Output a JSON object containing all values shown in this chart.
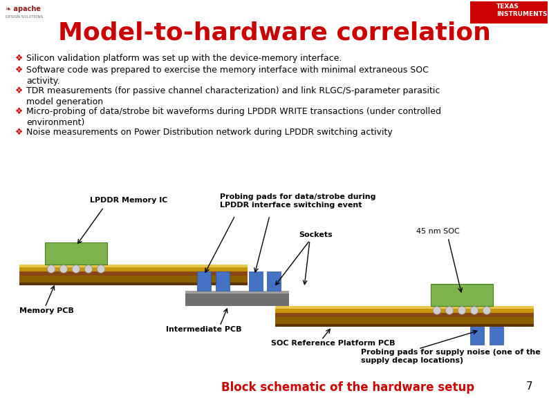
{
  "title": "Model-to-hardware correlation",
  "title_color": "#CC0000",
  "title_fontsize": 26,
  "background_color": "#FFFFFF",
  "bullet_points": [
    {
      "text": "Silicon validation platform was set up with the device-memory interface.",
      "lines": 1
    },
    {
      "text": "Software code was prepared to exercise the memory interface with minimal extraneous SOC\nactivity.",
      "lines": 2
    },
    {
      "text": "TDR measurements (for passive channel characterization) and link RLGC/S-parameter parasitic\nmodel generation",
      "lines": 2
    },
    {
      "text": "Micro-probing of data/strobe bit waveforms during LPDDR WRITE transactions (under controlled\nenvironment)",
      "lines": 2
    },
    {
      "text": "Noise measurements on Power Distribution network during LPDDR switching activity",
      "lines": 1
    }
  ],
  "bullet_color": "#000000",
  "bullet_fontsize": 9.0,
  "footer_text": "Block schematic of the hardware setup",
  "footer_color": "#CC0000",
  "footer_fontsize": 12,
  "page_number": "7",
  "pcb_colors": {
    "gold_top": "#E8C84A",
    "gold_main": "#C8960A",
    "brown_stripe": "#8B4513",
    "dark_bottom": "#5C3300",
    "gray_inter": "#808080",
    "gray_light": "#A0A0A0",
    "green_ic": "#7CB34A",
    "green_ic_edge": "#4a7c1f",
    "blue_socket": "#4472C4",
    "blue_socket_edge": "#2c5299",
    "ball_face": "#D0D0D0",
    "ball_edge": "#888888"
  }
}
